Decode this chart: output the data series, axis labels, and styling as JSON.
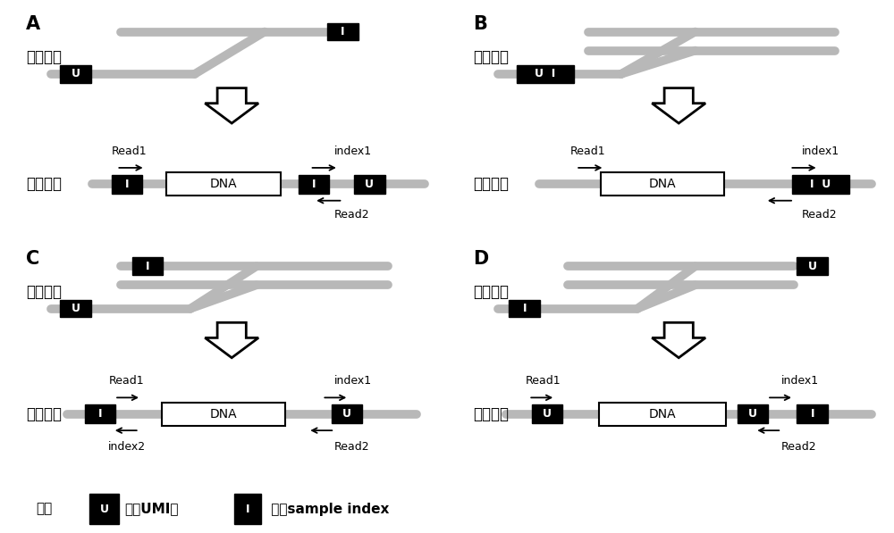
{
  "bg_color": "#ffffff",
  "gray_color": "#b8b8b8",
  "black_color": "#000000",
  "white_color": "#ffffff",
  "gray_lw": 7,
  "label_fontsize": 12,
  "annot_fontsize": 9,
  "note_fontsize": 11,
  "panel_label_fontsize": 15,
  "adapter_label": "接头结构",
  "library_label": "文库结构",
  "dna_text": "DNA",
  "note_prefix": "注：",
  "note_umi_text": "代表UMI，",
  "note_idx_text": " 代表sample index"
}
